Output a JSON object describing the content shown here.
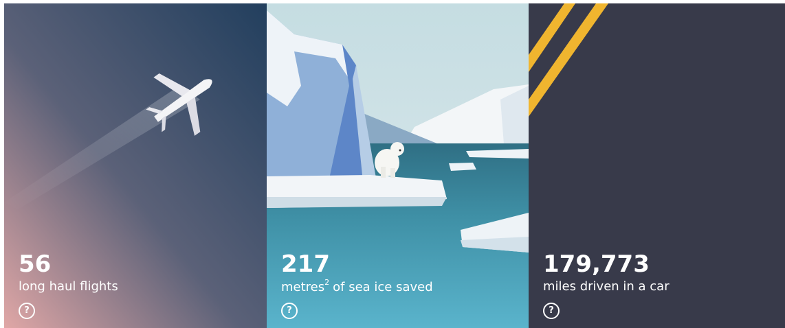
{
  "cards": [
    {
      "stat": "56",
      "label": [
        "long haul flights"
      ],
      "help": "?"
    },
    {
      "stat": "217",
      "label": [
        "metres",
        "2",
        "of sea ice saved"
      ],
      "help": "?"
    },
    {
      "stat": "179,773",
      "label": [
        "miles driven in a car"
      ],
      "help": "?"
    }
  ]
}
